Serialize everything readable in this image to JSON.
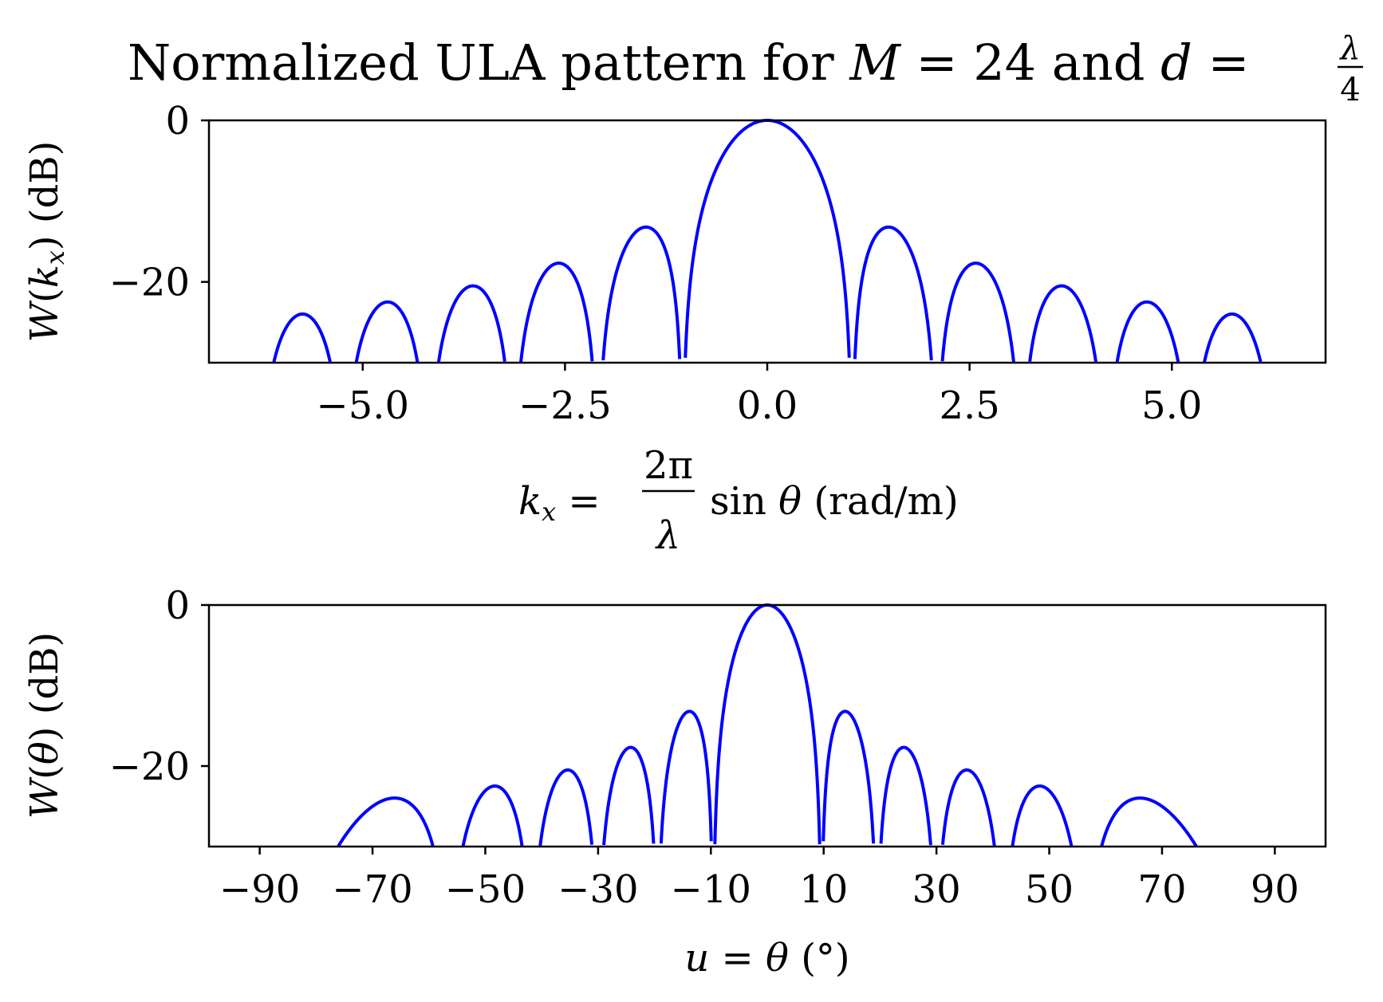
{
  "figure": {
    "title_prefix": "Normalized ULA pattern for ",
    "title_M": "M",
    "title_eq1": " = 24 and ",
    "title_d": "d",
    "title_eq2": " = ",
    "title_frac_num": "λ",
    "title_frac_den": "4"
  },
  "colors": {
    "line": "#0000ff",
    "axes": "#000000",
    "background": "#ffffff"
  },
  "chart_data": [
    {
      "type": "line",
      "title": "",
      "ylabel": "W(k_x) (dB)",
      "ylabel_parts": {
        "W": "W",
        "open": "(",
        "k": "k",
        "sub": "x",
        "close": ")",
        "unit": " (dB)"
      },
      "xlabel": "k_x = 2π/λ sin θ (rad/m)",
      "xlabel_parts": {
        "k": "k",
        "sub": "x",
        "eq": " = ",
        "num": "2π",
        "den": "λ",
        "sin": "sin",
        "theta": "θ",
        "unit": "(rad/m)"
      },
      "xlim": [
        -6.9,
        6.9
      ],
      "ylim": [
        -30,
        0
      ],
      "xticks": [
        -5.0,
        -2.5,
        0.0,
        2.5,
        5.0
      ],
      "xtick_labels": [
        "−5.0",
        "−2.5",
        "0.0",
        "2.5",
        "5.0"
      ],
      "yticks": [
        0,
        -20
      ],
      "ytick_labels": [
        "0",
        "−20"
      ],
      "grid": false,
      "model": {
        "elements": 24,
        "spacing_over_lambda": 0.25,
        "x_range": [
          -6.2832,
          6.2832
        ]
      },
      "series": [
        {
          "color": "#0000ff"
        }
      ]
    },
    {
      "type": "line",
      "title": "",
      "ylabel": "W(θ) (dB)",
      "ylabel_parts": {
        "W": "W",
        "open": "(",
        "theta": "θ",
        "close": ")",
        "unit": " (dB)"
      },
      "xlabel": "u = θ (°)",
      "xlabel_parts": {
        "u": "u",
        "eq": " = ",
        "theta": "θ",
        "unit": "(°)"
      },
      "xlim": [
        -99,
        99
      ],
      "ylim": [
        -30,
        0
      ],
      "xticks": [
        -90,
        -70,
        -50,
        -30,
        -10,
        10,
        30,
        50,
        70,
        90
      ],
      "xtick_labels": [
        "−90",
        "−70",
        "−50",
        "−30",
        "−10",
        "10",
        "30",
        "50",
        "70",
        "90"
      ],
      "yticks": [
        0,
        -20
      ],
      "ytick_labels": [
        "0",
        "−20"
      ],
      "grid": false,
      "model": {
        "elements": 24,
        "spacing_over_lambda": 0.25,
        "x_range": [
          -90,
          90
        ]
      },
      "series": [
        {
          "color": "#0000ff"
        }
      ]
    }
  ]
}
